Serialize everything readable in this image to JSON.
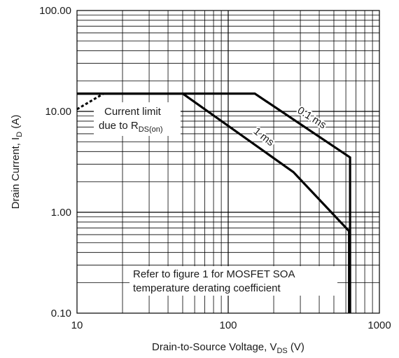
{
  "chart_data": {
    "type": "line",
    "x_scale": "log",
    "y_scale": "log",
    "xlim": [
      10,
      1000
    ],
    "ylim": [
      0.1,
      100
    ],
    "grid": true,
    "x_ticks": [
      {
        "value": 10,
        "label": "10"
      },
      {
        "value": 100,
        "label": "100"
      },
      {
        "value": 1000,
        "label": "1000"
      }
    ],
    "y_ticks": [
      {
        "value": 0.1,
        "label": "0.10"
      },
      {
        "value": 1,
        "label": "1.00"
      },
      {
        "value": 10,
        "label": "10.00"
      },
      {
        "value": 100,
        "label": "100.00"
      }
    ],
    "xlabel": {
      "text": "Drain-to-Source Voltage, V",
      "sub": "DS",
      "suffix": " (V)"
    },
    "ylabel": {
      "text": "Drain Current, I",
      "sub": "D",
      "suffix": " (A)"
    },
    "series": [
      {
        "name": "0.1 ms",
        "style": "solid",
        "x": [
          10,
          150,
          640,
          640
        ],
        "y": [
          15,
          15,
          3.5,
          0.1
        ]
      },
      {
        "name": "1 ms",
        "style": "solid",
        "x": [
          10,
          50,
          270,
          630,
          630
        ],
        "y": [
          15,
          15,
          2.5,
          0.65,
          0.1
        ]
      },
      {
        "name": "Current limit due to RDS(on)",
        "style": "dashed",
        "x": [
          10,
          15
        ],
        "y": [
          10.5,
          15
        ]
      }
    ],
    "annotations": {
      "current_limit_line1": "Current limit",
      "current_limit_line2": "due to R",
      "current_limit_sub": "DS(on)",
      "label_01ms": "0.1 ms",
      "label_1ms": "1 ms",
      "note_line1": "Refer to figure 1 for MOSFET SOA",
      "note_line2": "temperature derating coefficient"
    }
  }
}
